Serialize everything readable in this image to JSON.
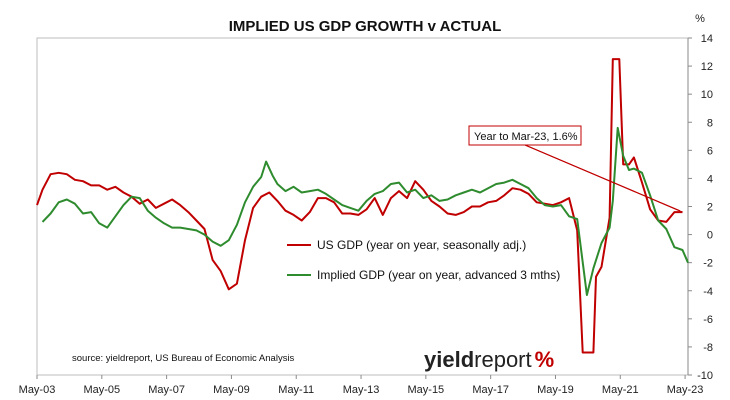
{
  "chart_data": {
    "type": "line",
    "title": "IMPLIED US GDP GROWTH v ACTUAL",
    "y_unit": "%",
    "xlabel": "",
    "ylabel": "",
    "ylim": [
      -10,
      14
    ],
    "y_ticks": [
      -10,
      -8,
      -6,
      -4,
      -2,
      0,
      2,
      4,
      6,
      8,
      10,
      12,
      14
    ],
    "x_range": [
      2003.33,
      2023.42
    ],
    "x_tick_labels": [
      {
        "x": 2003.33,
        "label": "May-03"
      },
      {
        "x": 2005.33,
        "label": "May-05"
      },
      {
        "x": 2007.33,
        "label": "May-07"
      },
      {
        "x": 2009.33,
        "label": "May-09"
      },
      {
        "x": 2011.33,
        "label": "May-11"
      },
      {
        "x": 2013.33,
        "label": "May-13"
      },
      {
        "x": 2015.33,
        "label": "May-15"
      },
      {
        "x": 2017.33,
        "label": "May-17"
      },
      {
        "x": 2019.33,
        "label": "May-19"
      },
      {
        "x": 2021.33,
        "label": "May-21"
      },
      {
        "x": 2023.33,
        "label": "May-23"
      }
    ],
    "grid": false,
    "legend_position": "center",
    "series": [
      {
        "name": "US GDP (year on year, seasonally adj.)",
        "color": "#c00000",
        "points": [
          [
            2003.33,
            2.1
          ],
          [
            2003.5,
            3.2
          ],
          [
            2003.75,
            4.3
          ],
          [
            2004.0,
            4.4
          ],
          [
            2004.25,
            4.3
          ],
          [
            2004.5,
            3.9
          ],
          [
            2004.75,
            3.8
          ],
          [
            2005.0,
            3.5
          ],
          [
            2005.25,
            3.5
          ],
          [
            2005.5,
            3.2
          ],
          [
            2005.75,
            3.4
          ],
          [
            2006.0,
            3.0
          ],
          [
            2006.25,
            2.7
          ],
          [
            2006.5,
            2.2
          ],
          [
            2006.75,
            2.5
          ],
          [
            2007.0,
            1.9
          ],
          [
            2007.25,
            2.2
          ],
          [
            2007.5,
            2.5
          ],
          [
            2007.75,
            2.1
          ],
          [
            2008.0,
            1.6
          ],
          [
            2008.25,
            1.0
          ],
          [
            2008.5,
            0.4
          ],
          [
            2008.75,
            -1.8
          ],
          [
            2009.0,
            -2.6
          ],
          [
            2009.25,
            -3.9
          ],
          [
            2009.5,
            -3.5
          ],
          [
            2009.75,
            -0.4
          ],
          [
            2010.0,
            1.9
          ],
          [
            2010.25,
            2.7
          ],
          [
            2010.5,
            3.0
          ],
          [
            2010.75,
            2.4
          ],
          [
            2011.0,
            1.7
          ],
          [
            2011.25,
            1.4
          ],
          [
            2011.5,
            1.0
          ],
          [
            2011.75,
            1.6
          ],
          [
            2012.0,
            2.6
          ],
          [
            2012.25,
            2.6
          ],
          [
            2012.5,
            2.3
          ],
          [
            2012.75,
            1.5
          ],
          [
            2013.0,
            1.5
          ],
          [
            2013.25,
            1.4
          ],
          [
            2013.5,
            1.8
          ],
          [
            2013.75,
            2.6
          ],
          [
            2014.0,
            1.4
          ],
          [
            2014.25,
            2.6
          ],
          [
            2014.5,
            3.1
          ],
          [
            2014.75,
            2.6
          ],
          [
            2015.0,
            3.8
          ],
          [
            2015.25,
            3.2
          ],
          [
            2015.5,
            2.4
          ],
          [
            2015.75,
            2.0
          ],
          [
            2016.0,
            1.5
          ],
          [
            2016.25,
            1.4
          ],
          [
            2016.5,
            1.6
          ],
          [
            2016.75,
            2.0
          ],
          [
            2017.0,
            2.0
          ],
          [
            2017.25,
            2.3
          ],
          [
            2017.5,
            2.4
          ],
          [
            2017.75,
            2.8
          ],
          [
            2018.0,
            3.3
          ],
          [
            2018.25,
            3.2
          ],
          [
            2018.5,
            2.9
          ],
          [
            2018.75,
            2.3
          ],
          [
            2019.0,
            2.2
          ],
          [
            2019.25,
            2.1
          ],
          [
            2019.5,
            2.3
          ],
          [
            2019.75,
            2.6
          ],
          [
            2020.0,
            0.3
          ],
          [
            2020.17,
            -8.4
          ],
          [
            2020.5,
            -8.4
          ],
          [
            2020.58,
            -3.0
          ],
          [
            2020.75,
            -2.3
          ],
          [
            2021.0,
            1.2
          ],
          [
            2021.1,
            12.5
          ],
          [
            2021.3,
            12.5
          ],
          [
            2021.42,
            5.0
          ],
          [
            2021.6,
            5.0
          ],
          [
            2021.75,
            5.5
          ],
          [
            2022.0,
            3.7
          ],
          [
            2022.25,
            1.8
          ],
          [
            2022.5,
            1.0
          ],
          [
            2022.75,
            0.9
          ],
          [
            2023.0,
            1.6
          ],
          [
            2023.25,
            1.6
          ]
        ]
      },
      {
        "name": "Implied GDP (year on year, advanced 3 mths)",
        "color": "#2e8b2e",
        "points": [
          [
            2003.5,
            0.9
          ],
          [
            2003.75,
            1.5
          ],
          [
            2004.0,
            2.3
          ],
          [
            2004.25,
            2.5
          ],
          [
            2004.5,
            2.2
          ],
          [
            2004.75,
            1.5
          ],
          [
            2005.0,
            1.6
          ],
          [
            2005.25,
            0.8
          ],
          [
            2005.5,
            0.5
          ],
          [
            2005.75,
            1.3
          ],
          [
            2006.0,
            2.1
          ],
          [
            2006.25,
            2.7
          ],
          [
            2006.5,
            2.6
          ],
          [
            2006.75,
            1.7
          ],
          [
            2007.0,
            1.2
          ],
          [
            2007.25,
            0.8
          ],
          [
            2007.5,
            0.5
          ],
          [
            2007.75,
            0.5
          ],
          [
            2008.0,
            0.4
          ],
          [
            2008.25,
            0.3
          ],
          [
            2008.5,
            0.0
          ],
          [
            2008.75,
            -0.5
          ],
          [
            2009.0,
            -0.8
          ],
          [
            2009.25,
            -0.4
          ],
          [
            2009.5,
            0.7
          ],
          [
            2009.75,
            2.3
          ],
          [
            2010.0,
            3.4
          ],
          [
            2010.25,
            4.1
          ],
          [
            2010.4,
            5.2
          ],
          [
            2010.6,
            4.2
          ],
          [
            2010.75,
            3.6
          ],
          [
            2011.0,
            3.1
          ],
          [
            2011.25,
            3.4
          ],
          [
            2011.5,
            3.0
          ],
          [
            2011.75,
            3.1
          ],
          [
            2012.0,
            3.2
          ],
          [
            2012.25,
            2.9
          ],
          [
            2012.5,
            2.5
          ],
          [
            2012.75,
            2.1
          ],
          [
            2013.0,
            1.9
          ],
          [
            2013.25,
            1.7
          ],
          [
            2013.5,
            2.4
          ],
          [
            2013.75,
            2.9
          ],
          [
            2014.0,
            3.1
          ],
          [
            2014.25,
            3.6
          ],
          [
            2014.5,
            3.7
          ],
          [
            2014.75,
            3.0
          ],
          [
            2015.0,
            3.2
          ],
          [
            2015.25,
            2.6
          ],
          [
            2015.5,
            2.8
          ],
          [
            2015.75,
            2.4
          ],
          [
            2016.0,
            2.5
          ],
          [
            2016.25,
            2.8
          ],
          [
            2016.5,
            3.0
          ],
          [
            2016.75,
            3.2
          ],
          [
            2017.0,
            3.0
          ],
          [
            2017.25,
            3.3
          ],
          [
            2017.5,
            3.6
          ],
          [
            2017.75,
            3.7
          ],
          [
            2018.0,
            3.9
          ],
          [
            2018.25,
            3.6
          ],
          [
            2018.5,
            3.3
          ],
          [
            2018.75,
            2.6
          ],
          [
            2019.0,
            2.1
          ],
          [
            2019.25,
            2.0
          ],
          [
            2019.5,
            2.1
          ],
          [
            2019.75,
            1.3
          ],
          [
            2020.0,
            1.1
          ],
          [
            2020.3,
            -4.3
          ],
          [
            2020.5,
            -2.4
          ],
          [
            2020.75,
            -0.6
          ],
          [
            2021.0,
            0.5
          ],
          [
            2021.1,
            2.4
          ],
          [
            2021.25,
            7.6
          ],
          [
            2021.42,
            5.6
          ],
          [
            2021.6,
            4.6
          ],
          [
            2021.75,
            4.7
          ],
          [
            2022.0,
            4.4
          ],
          [
            2022.25,
            2.8
          ],
          [
            2022.5,
            1.0
          ],
          [
            2022.75,
            0.4
          ],
          [
            2023.0,
            -0.9
          ],
          [
            2023.25,
            -1.1
          ],
          [
            2023.42,
            -2.0
          ]
        ]
      }
    ],
    "annotation": {
      "text": "Year to Mar-23, 1.6%",
      "points_to": [
        [
          2023.25,
          1.6
        ],
        [
          2023.17,
          1.7
        ]
      ]
    },
    "source": "source: yieldreport, US Bureau of Economic Analysis"
  },
  "logo": {
    "part1": "yield",
    "part2": "report",
    "part3": "%"
  }
}
